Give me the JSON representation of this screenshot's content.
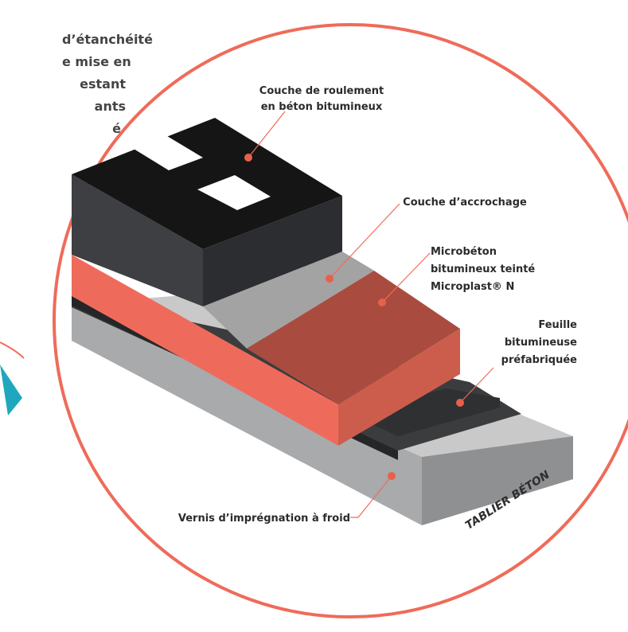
{
  "intro_text_lines": [
    "d’étanchéité",
    "e mise en",
    "estant",
    "ants",
    "é."
  ],
  "labels": {
    "roulement": [
      "Couche de roulement",
      "en béton bitumineux"
    ],
    "accrochage": "Couche d’accrochage",
    "microbeton": [
      "Microbéton",
      "bitumineux teinté",
      "Microplast® N"
    ],
    "feuille": [
      "Feuille",
      "bitumineuse",
      "préfabriquée"
    ],
    "vernis": "Vernis d’imprégnation à froid",
    "tablier": "TABLIER BÉTON"
  },
  "colors": {
    "circle": "#ef6b5a",
    "dot": "#e8604c",
    "asphalt_top": "#151515",
    "asphalt_front": "#3e3f42",
    "asphalt_side": "#2c2d30",
    "tack_grey": "#a3a3a3",
    "microbeton_top": "#a94c3f",
    "microbeton_front": "#cc5d4d",
    "salmon": "#ee6b5c",
    "membrane": "#2b2c2e",
    "concrete_top": "#c9c9c9",
    "concrete_front": "#a9aaac",
    "arrow": "#1fa8bd"
  }
}
